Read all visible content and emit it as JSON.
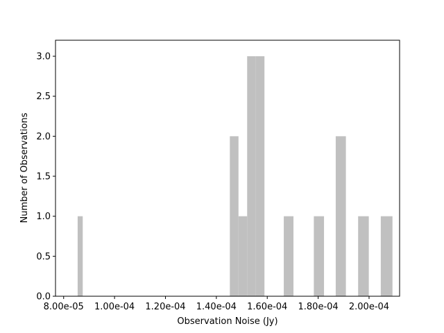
{
  "chart_data": {
    "type": "bar",
    "title": "",
    "xlabel": "Observation Noise (Jy)",
    "ylabel": "Number of Observations",
    "xlim": [
      7.68e-05,
      0.000212
    ],
    "ylim": [
      0,
      3.2
    ],
    "grid": false,
    "bar_color": "#c0c0c0",
    "x_ticks": [
      {
        "value": 8e-05,
        "label": "8.00e-05"
      },
      {
        "value": 0.0001,
        "label": "1.00e-04"
      },
      {
        "value": 0.00012,
        "label": "1.20e-04"
      },
      {
        "value": 0.00014,
        "label": "1.40e-04"
      },
      {
        "value": 0.00016,
        "label": "1.60e-04"
      },
      {
        "value": 0.00018,
        "label": "1.80e-04"
      },
      {
        "value": 0.0002,
        "label": "2.00e-04"
      }
    ],
    "y_ticks": [
      {
        "value": 0.0,
        "label": "0.0"
      },
      {
        "value": 0.5,
        "label": "0.5"
      },
      {
        "value": 1.0,
        "label": "1.0"
      },
      {
        "value": 1.5,
        "label": "1.5"
      },
      {
        "value": 2.0,
        "label": "2.0"
      },
      {
        "value": 2.5,
        "label": "2.5"
      },
      {
        "value": 3.0,
        "label": "3.0"
      }
    ],
    "bins": [
      {
        "x0": 8.55e-05,
        "x1": 8.75e-05,
        "count": 1
      },
      {
        "x0": 0.0001453,
        "x1": 0.0001487,
        "count": 2
      },
      {
        "x0": 0.0001487,
        "x1": 0.0001521,
        "count": 1
      },
      {
        "x0": 0.0001521,
        "x1": 0.0001555,
        "count": 3
      },
      {
        "x0": 0.0001555,
        "x1": 0.0001589,
        "count": 3
      },
      {
        "x0": 0.0001665,
        "x1": 0.0001703,
        "count": 1
      },
      {
        "x0": 0.0001783,
        "x1": 0.0001823,
        "count": 1
      },
      {
        "x0": 0.0001869,
        "x1": 0.0001909,
        "count": 2
      },
      {
        "x0": 0.0001957,
        "x1": 0.0001999,
        "count": 1
      },
      {
        "x0": 0.0002046,
        "x1": 0.0002092,
        "count": 1
      }
    ]
  }
}
